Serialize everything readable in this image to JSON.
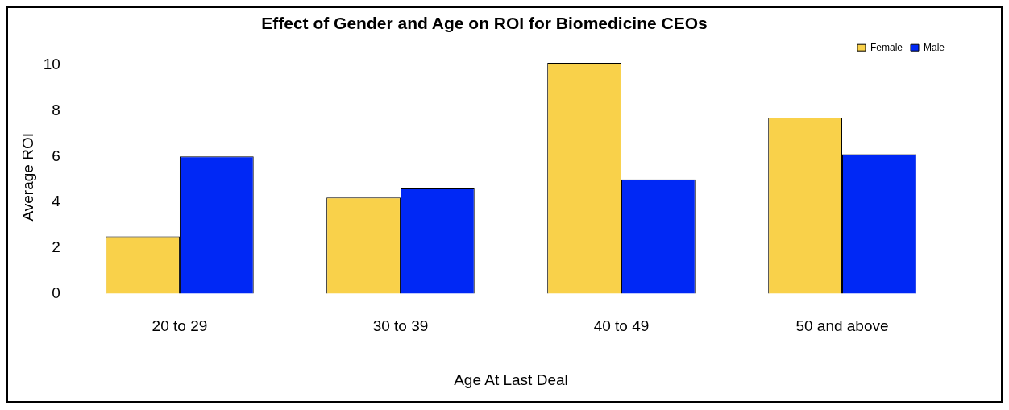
{
  "chart_data": {
    "type": "bar",
    "title": "Effect of Gender and Age on ROI for Biomedicine CEOs",
    "xlabel": "Age At Last Deal",
    "ylabel": "Average ROI",
    "categories": [
      "20 to 29",
      "30 to 39",
      "40 to 49",
      "50 and above"
    ],
    "series": [
      {
        "name": "Female",
        "color": "#f9d14a",
        "values": [
          2.5,
          4.2,
          10.1,
          7.7
        ]
      },
      {
        "name": "Male",
        "color": "#0028f5",
        "values": [
          6.0,
          4.6,
          5.0,
          6.1
        ]
      }
    ],
    "ylim": [
      0,
      10.2
    ],
    "yticks": [
      0,
      2,
      4,
      6,
      8,
      10
    ],
    "grid": false,
    "legend": "top right"
  }
}
